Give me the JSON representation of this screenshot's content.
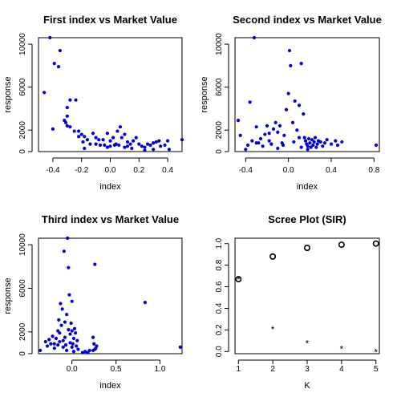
{
  "chart_data": [
    {
      "type": "scatter",
      "title": "First index vs Market Value",
      "xlabel": "index",
      "ylabel": "response",
      "xlim": [
        -0.5,
        0.5
      ],
      "ylim": [
        0,
        10600
      ],
      "xticks": [
        -0.4,
        -0.2,
        0.0,
        0.2,
        0.4
      ],
      "xtick_labels": [
        "-0.4",
        "-0.2",
        "0.0",
        "0.2",
        "0.4"
      ],
      "yticks": [
        0,
        2000,
        6000,
        10000
      ],
      "ytick_labels": [
        "0",
        "2000",
        "6000",
        "10000"
      ],
      "grid": false,
      "color": "#0000cc",
      "points": [
        [
          -0.46,
          5500
        ],
        [
          -0.42,
          10600
        ],
        [
          -0.39,
          8200
        ],
        [
          -0.35,
          9400
        ],
        [
          -0.36,
          7900
        ],
        [
          -0.4,
          2100
        ],
        [
          -0.28,
          4800
        ],
        [
          -0.24,
          4800
        ],
        [
          -0.3,
          4100
        ],
        [
          -0.32,
          2900
        ],
        [
          -0.3,
          3300
        ],
        [
          -0.31,
          2700
        ],
        [
          -0.3,
          2400
        ],
        [
          -0.28,
          2300
        ],
        [
          -0.25,
          1900
        ],
        [
          -0.22,
          1900
        ],
        [
          -0.2,
          1600
        ],
        [
          -0.18,
          1400
        ],
        [
          -0.22,
          1400
        ],
        [
          -0.19,
          900
        ],
        [
          -0.16,
          1100
        ],
        [
          -0.12,
          1700
        ],
        [
          -0.1,
          1300
        ],
        [
          -0.08,
          1100
        ],
        [
          -0.07,
          600
        ],
        [
          -0.05,
          1100
        ],
        [
          -0.02,
          1700
        ],
        [
          0.0,
          1000
        ],
        [
          0.02,
          1300
        ],
        [
          0.03,
          600
        ],
        [
          0.05,
          1900
        ],
        [
          0.07,
          2300
        ],
        [
          0.08,
          1300
        ],
        [
          0.1,
          1600
        ],
        [
          0.12,
          900
        ],
        [
          0.14,
          700
        ],
        [
          -0.14,
          700
        ],
        [
          -0.1,
          700
        ],
        [
          -0.04,
          600
        ],
        [
          0.0,
          500
        ],
        [
          0.04,
          700
        ],
        [
          0.06,
          600
        ],
        [
          0.1,
          400
        ],
        [
          0.12,
          500
        ],
        [
          0.15,
          300
        ],
        [
          0.16,
          1000
        ],
        [
          0.18,
          1300
        ],
        [
          0.2,
          700
        ],
        [
          0.22,
          500
        ],
        [
          0.24,
          400
        ],
        [
          0.26,
          700
        ],
        [
          0.28,
          600
        ],
        [
          0.3,
          800
        ],
        [
          0.32,
          900
        ],
        [
          0.34,
          1000
        ],
        [
          0.35,
          500
        ],
        [
          0.38,
          600
        ],
        [
          0.4,
          1000
        ],
        [
          0.41,
          200
        ],
        [
          0.5,
          1100
        ],
        [
          0.3,
          200
        ],
        [
          0.24,
          100
        ],
        [
          -0.18,
          300
        ],
        [
          -0.02,
          400
        ]
      ]
    },
    {
      "type": "scatter",
      "title": "Second index vs Market Value",
      "xlabel": "index",
      "ylabel": "response",
      "xlim": [
        -0.5,
        0.85
      ],
      "ylim": [
        0,
        10600
      ],
      "xticks": [
        -0.4,
        0.0,
        0.4,
        0.8
      ],
      "xtick_labels": [
        "-0.4",
        "0.0",
        "0.4",
        "0.8"
      ],
      "yticks": [
        0,
        2000,
        6000,
        10000
      ],
      "ytick_labels": [
        "0",
        "2000",
        "6000",
        "10000"
      ],
      "grid": false,
      "color": "#0000cc",
      "points": [
        [
          -0.47,
          2900
        ],
        [
          -0.45,
          1500
        ],
        [
          -0.4,
          200
        ],
        [
          -0.38,
          600
        ],
        [
          -0.36,
          4600
        ],
        [
          -0.32,
          10600
        ],
        [
          -0.34,
          1000
        ],
        [
          -0.3,
          2300
        ],
        [
          -0.28,
          800
        ],
        [
          -0.26,
          1200
        ],
        [
          -0.24,
          500
        ],
        [
          -0.22,
          1600
        ],
        [
          -0.2,
          2400
        ],
        [
          -0.18,
          1000
        ],
        [
          -0.16,
          700
        ],
        [
          -0.14,
          2100
        ],
        [
          -0.12,
          2700
        ],
        [
          -0.1,
          1800
        ],
        [
          -0.08,
          2400
        ],
        [
          -0.06,
          800
        ],
        [
          -0.04,
          1500
        ],
        [
          -0.02,
          3900
        ],
        [
          0.0,
          5400
        ],
        [
          0.01,
          9400
        ],
        [
          0.02,
          8000
        ],
        [
          0.04,
          2700
        ],
        [
          0.06,
          4700
        ],
        [
          0.08,
          2000
        ],
        [
          0.1,
          4300
        ],
        [
          0.12,
          8200
        ],
        [
          0.14,
          3500
        ],
        [
          0.15,
          1300
        ],
        [
          0.16,
          1000
        ],
        [
          0.17,
          700
        ],
        [
          0.18,
          500
        ],
        [
          0.19,
          1200
        ],
        [
          0.2,
          800
        ],
        [
          0.21,
          400
        ],
        [
          0.22,
          1100
        ],
        [
          0.23,
          600
        ],
        [
          0.24,
          900
        ],
        [
          0.25,
          1300
        ],
        [
          0.26,
          400
        ],
        [
          0.27,
          700
        ],
        [
          0.28,
          1000
        ],
        [
          0.3,
          900
        ],
        [
          0.32,
          500
        ],
        [
          0.34,
          800
        ],
        [
          0.36,
          1100
        ],
        [
          0.4,
          700
        ],
        [
          0.44,
          1000
        ],
        [
          0.46,
          600
        ],
        [
          0.5,
          900
        ],
        [
          0.82,
          600
        ],
        [
          -0.1,
          300
        ],
        [
          -0.05,
          600
        ],
        [
          0.05,
          900
        ],
        [
          0.1,
          1300
        ],
        [
          -0.18,
          1700
        ],
        [
          -0.3,
          800
        ],
        [
          0.12,
          400
        ],
        [
          0.18,
          200
        ]
      ]
    },
    {
      "type": "scatter",
      "title": "Third index vs Market Value",
      "xlabel": "index",
      "ylabel": "response",
      "xlim": [
        -0.38,
        1.25
      ],
      "ylim": [
        0,
        10600
      ],
      "xticks": [
        -0.5,
        0.0,
        0.5,
        1.0
      ],
      "xtick_labels": [
        "",
        "0.0",
        "0.5",
        "1.0"
      ],
      "yticks": [
        0,
        2000,
        6000,
        10000
      ],
      "ytick_labels": [
        "0",
        "2000",
        "6000",
        "10000"
      ],
      "grid": false,
      "color": "#0000cc",
      "points": [
        [
          -0.36,
          300
        ],
        [
          -0.3,
          1100
        ],
        [
          -0.28,
          700
        ],
        [
          -0.26,
          1300
        ],
        [
          -0.24,
          900
        ],
        [
          -0.22,
          1600
        ],
        [
          -0.2,
          500
        ],
        [
          -0.18,
          1400
        ],
        [
          -0.16,
          2100
        ],
        [
          -0.15,
          3100
        ],
        [
          -0.14,
          1900
        ],
        [
          -0.13,
          4600
        ],
        [
          -0.12,
          2600
        ],
        [
          -0.11,
          4100
        ],
        [
          -0.1,
          1200
        ],
        [
          -0.09,
          9400
        ],
        [
          -0.08,
          2900
        ],
        [
          -0.07,
          800
        ],
        [
          -0.06,
          3600
        ],
        [
          -0.05,
          10600
        ],
        [
          -0.04,
          2200
        ],
        [
          -0.04,
          7900
        ],
        [
          -0.03,
          5400
        ],
        [
          -0.02,
          1800
        ],
        [
          -0.01,
          2800
        ],
        [
          0.0,
          4800
        ],
        [
          0.01,
          900
        ],
        [
          0.02,
          1400
        ],
        [
          0.03,
          2300
        ],
        [
          0.04,
          1900
        ],
        [
          0.05,
          700
        ],
        [
          0.06,
          1200
        ],
        [
          0.07,
          400
        ],
        [
          -0.06,
          300
        ],
        [
          -0.1,
          600
        ],
        [
          -0.2,
          900
        ],
        [
          0.02,
          200
        ],
        [
          0.0,
          600
        ],
        [
          -0.14,
          1100
        ],
        [
          0.12,
          100
        ],
        [
          0.15,
          200
        ],
        [
          0.18,
          100
        ],
        [
          0.2,
          300
        ],
        [
          0.24,
          1500
        ],
        [
          0.25,
          900
        ],
        [
          0.26,
          8200
        ],
        [
          0.27,
          500
        ],
        [
          0.28,
          700
        ],
        [
          0.24,
          300
        ],
        [
          0.26,
          400
        ],
        [
          0.83,
          4700
        ],
        [
          1.23,
          600
        ],
        [
          -0.08,
          1500
        ],
        [
          -0.02,
          1000
        ],
        [
          0.0,
          2100
        ],
        [
          -0.16,
          800
        ]
      ]
    },
    {
      "type": "scatter",
      "title": "Scree Plot (SIR)",
      "xlabel": "K",
      "ylabel": "",
      "xlim": [
        0.9,
        5.1
      ],
      "ylim": [
        -0.02,
        1.05
      ],
      "xticks": [
        1,
        2,
        3,
        4,
        5
      ],
      "xtick_labels": [
        "1",
        "2",
        "3",
        "4",
        "5"
      ],
      "yticks": [
        0.0,
        0.2,
        0.4,
        0.6,
        0.8,
        1.0
      ],
      "ytick_labels": [
        "0.0",
        "0.2",
        "0.4",
        "0.6",
        "0.8",
        "1.0"
      ],
      "grid": false,
      "color": "#000000",
      "series": [
        {
          "marker": "circle",
          "x": [
            1,
            2,
            3,
            4,
            5
          ],
          "y": [
            0.67,
            0.88,
            0.96,
            0.99,
            1.0
          ]
        },
        {
          "marker": "star",
          "x": [
            1,
            2,
            3,
            4,
            5
          ],
          "y": [
            0.67,
            0.21,
            0.08,
            0.03,
            0.0
          ]
        }
      ]
    }
  ]
}
